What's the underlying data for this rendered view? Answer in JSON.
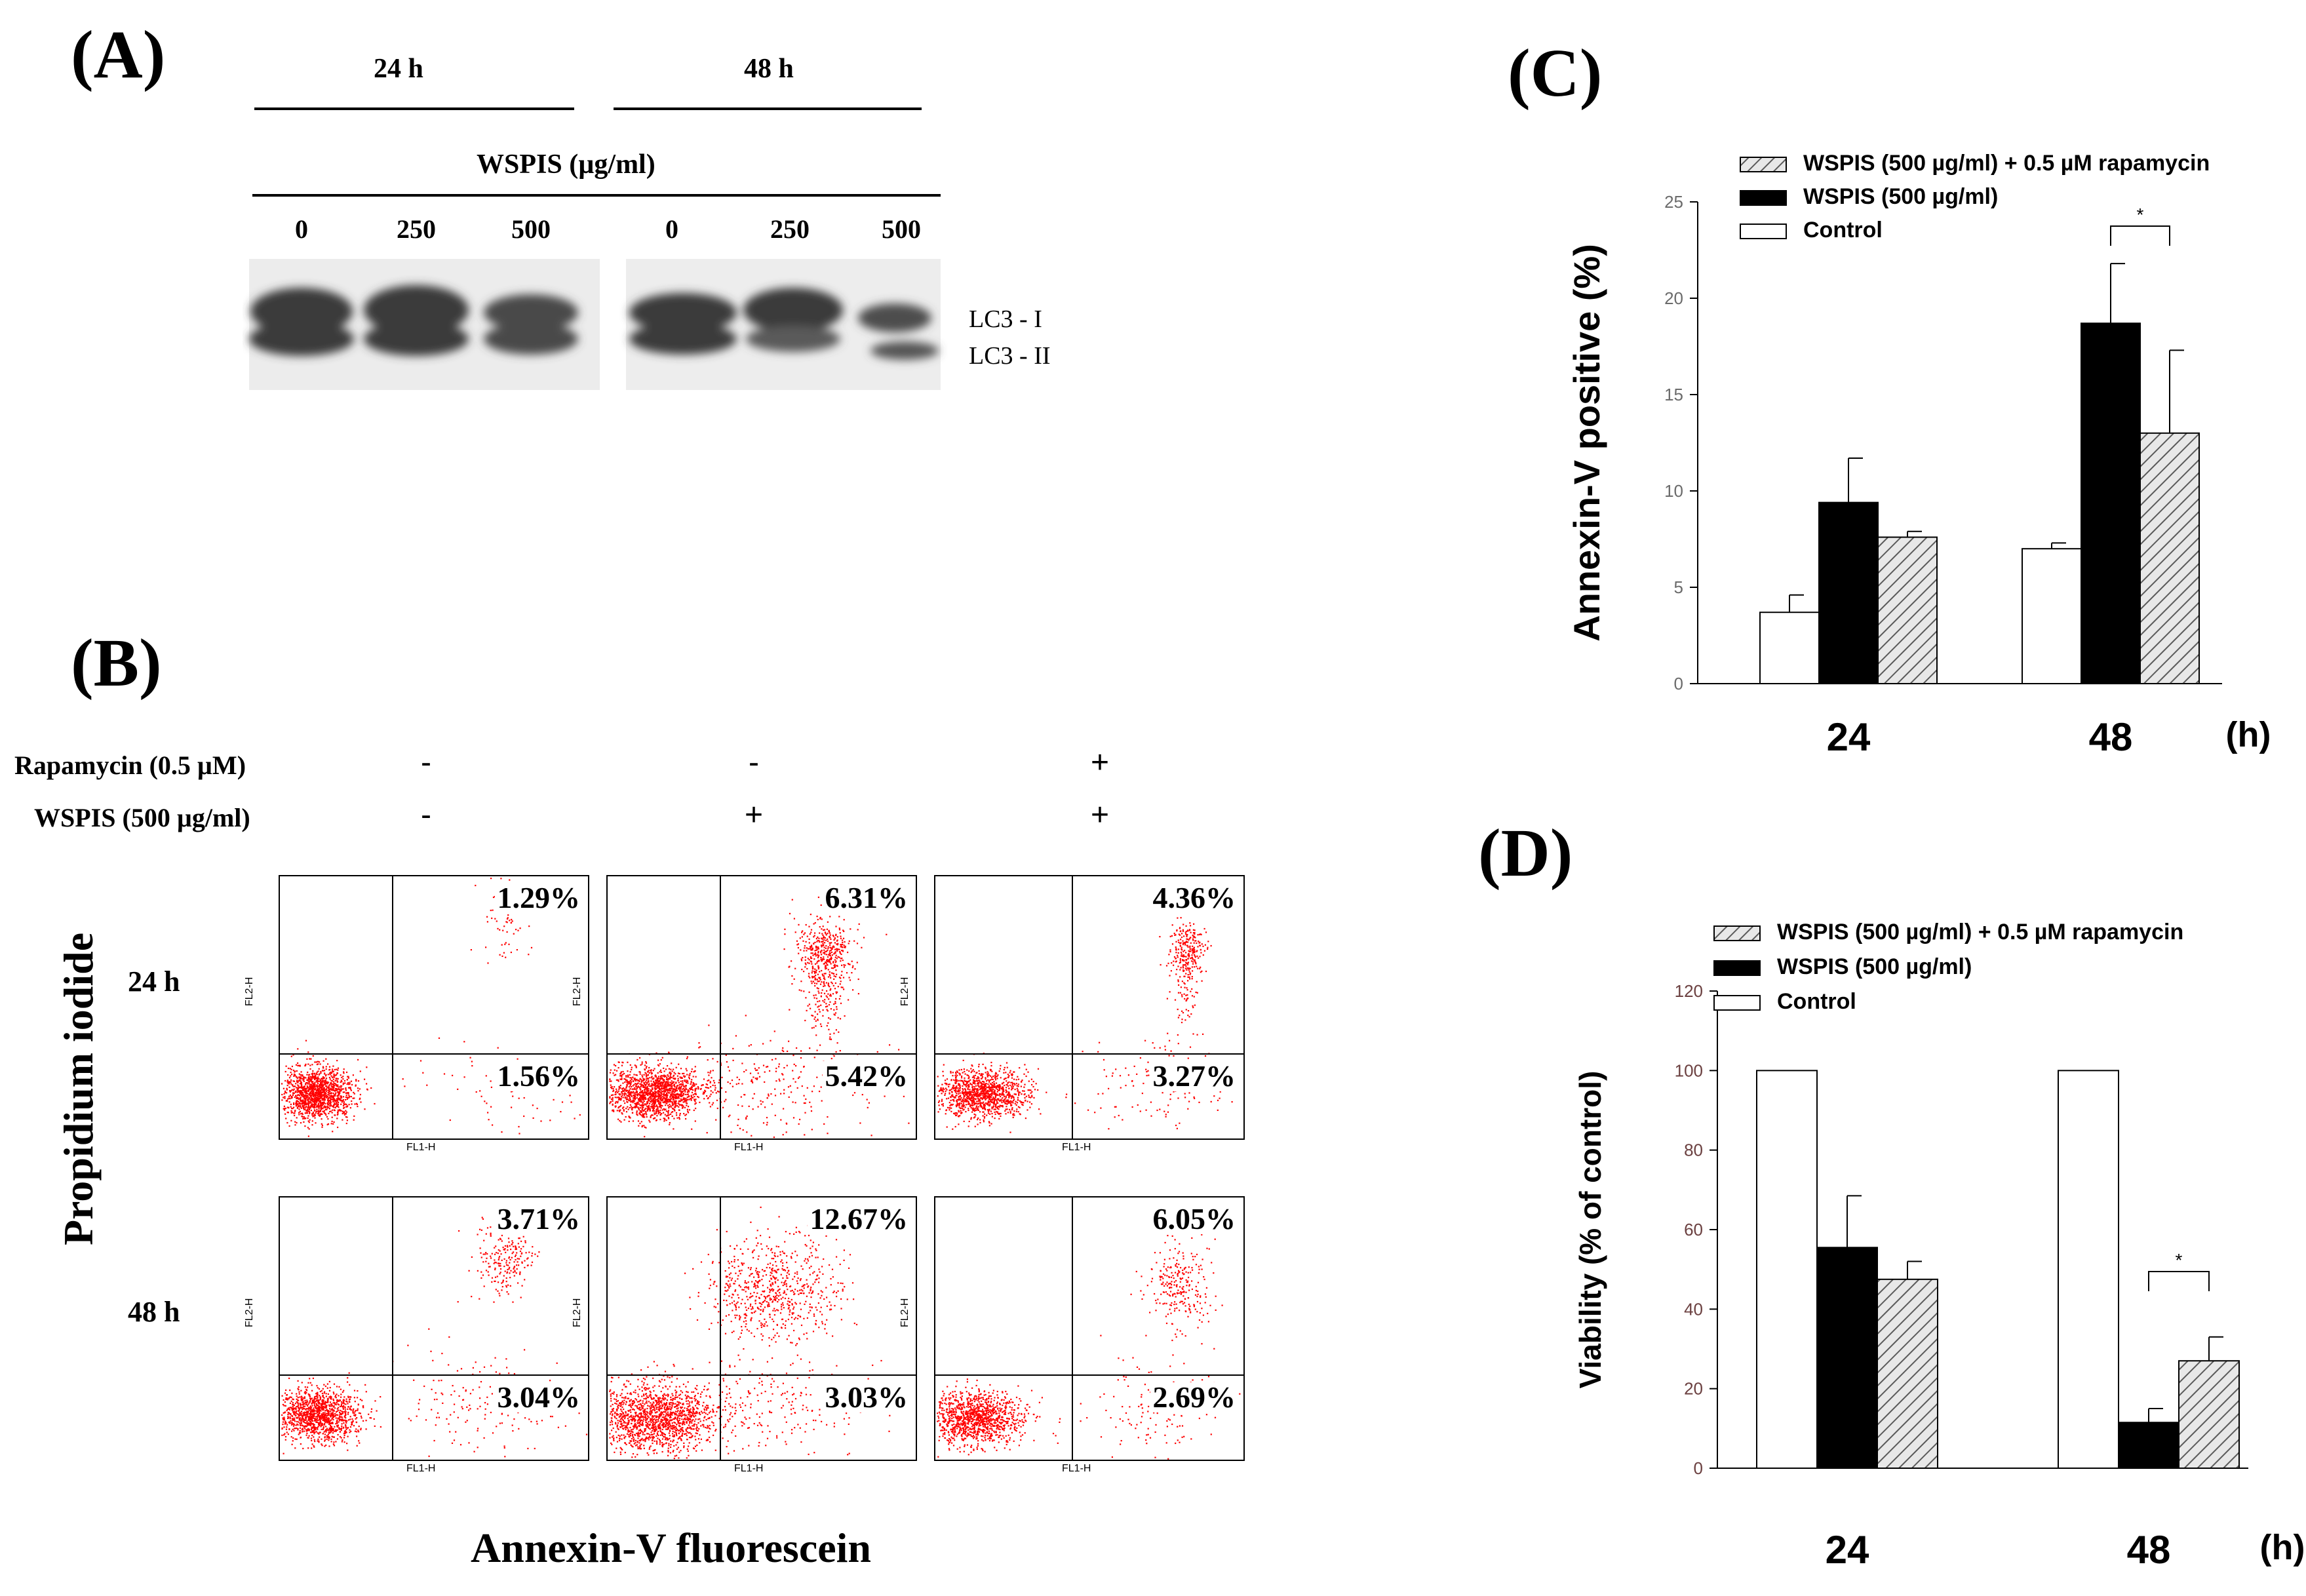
{
  "panels": {
    "A": "(A)",
    "B": "(B)",
    "C": "(C)",
    "D": "(D)"
  },
  "panel_a": {
    "time_labels": [
      "24 h",
      "48 h"
    ],
    "treatment_label": "WSPIS (µg/ml)",
    "lanes": [
      "0",
      "250",
      "500",
      "0",
      "250",
      "500"
    ],
    "bands": [
      "LC3 - I",
      "LC3 - II"
    ]
  },
  "panel_b": {
    "rapamycin_label": "Rapamycin (0.5 µM)",
    "wspis_label": "WSPIS (500 µg/ml)",
    "rapamycin_signs": [
      "-",
      "-",
      "+"
    ],
    "wspis_signs": [
      "-",
      "+",
      "+"
    ],
    "row_labels": [
      "24 h",
      "48 h"
    ],
    "y_axis_title": "Propidium iodide",
    "x_axis_title": "Annexin-V fluorescein",
    "panel_x_label": "FL1-H",
    "panel_y_label": "FL2-H",
    "dot_color": "#ff0000",
    "quadrants": [
      [
        {
          "upper_right": "1.29%",
          "lower_right": "1.56%"
        },
        {
          "upper_right": "6.31%",
          "lower_right": "5.42%"
        },
        {
          "upper_right": "4.36%",
          "lower_right": "3.27%"
        }
      ],
      [
        {
          "upper_right": "3.71%",
          "lower_right": "3.04%"
        },
        {
          "upper_right": "12.67%",
          "lower_right": "3.03%"
        },
        {
          "upper_right": "6.05%",
          "lower_right": "2.69%"
        }
      ]
    ]
  },
  "chart_data": [
    {
      "type": "bar",
      "panel": "C",
      "categories": [
        "24",
        "48"
      ],
      "x_unit": "(h)",
      "ylabel": "Annexin-V positive (%)",
      "ylim": [
        0,
        25
      ],
      "yticks": [
        0,
        5,
        10,
        15,
        20,
        25
      ],
      "series": [
        {
          "name": "Control",
          "values": [
            3.7,
            7.0
          ],
          "errors": [
            0.9,
            0.3
          ],
          "fill": "white"
        },
        {
          "name": "WSPIS (500 µg/ml)",
          "values": [
            9.4,
            18.7
          ],
          "errors": [
            2.3,
            3.1
          ],
          "fill": "black"
        },
        {
          "name": "WSPIS (500 µg/ml) + 0.5 µM rapamycin",
          "values": [
            7.6,
            13.0
          ],
          "errors": [
            0.3,
            4.3
          ],
          "fill": "hatched"
        }
      ],
      "legend_order": [
        "WSPIS (500 µg/ml) + 0.5 µM rapamycin",
        "WSPIS (500 µg/ml)",
        "Control"
      ],
      "significance": [
        {
          "category": "48",
          "label": "*"
        }
      ]
    },
    {
      "type": "bar",
      "panel": "D",
      "categories": [
        "24",
        "48"
      ],
      "x_unit": "(h)",
      "ylabel": "Viability (% of control)",
      "ylim": [
        0,
        120
      ],
      "yticks": [
        0,
        20,
        40,
        60,
        80,
        100,
        120
      ],
      "series": [
        {
          "name": "Control",
          "values": [
            100,
            100
          ],
          "errors": [
            0,
            0
          ],
          "fill": "white"
        },
        {
          "name": "WSPIS (500 µg/ml)",
          "values": [
            55.5,
            11.5
          ],
          "errors": [
            13,
            3.5
          ],
          "fill": "black"
        },
        {
          "name": "WSPIS (500 µg/ml) + 0.5 µM rapamycin",
          "values": [
            47.5,
            27
          ],
          "errors": [
            4.5,
            6
          ],
          "fill": "hatched"
        }
      ],
      "legend_order": [
        "WSPIS (500 µg/ml) + 0.5 µM rapamycin",
        "WSPIS (500 µg/ml)",
        "Control"
      ],
      "significance": [
        {
          "category": "48",
          "label": "*"
        }
      ]
    }
  ]
}
